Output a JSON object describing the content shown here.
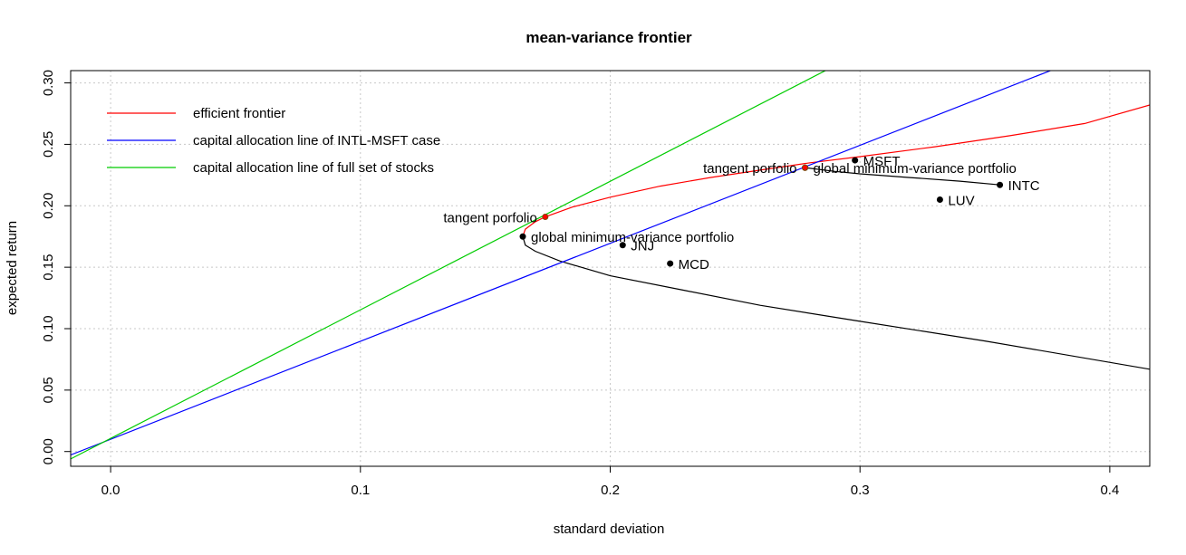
{
  "chart_data": {
    "type": "line",
    "title": "mean-variance frontier",
    "xlabel": "standard deviation",
    "ylabel": "expected return",
    "xlim": [
      -0.016,
      0.416
    ],
    "ylim": [
      -0.012,
      0.31
    ],
    "x_ticks": [
      "0.0",
      "0.1",
      "0.2",
      "0.3",
      "0.4"
    ],
    "y_ticks": [
      "0.00",
      "0.05",
      "0.10",
      "0.15",
      "0.20",
      "0.25",
      "0.30"
    ],
    "grid": true,
    "legend": {
      "position": "top-left",
      "items": [
        {
          "label": "efficient frontier",
          "color": "#ff0000"
        },
        {
          "label": "capital allocation line of INTL-MSFT case",
          "color": "#0000ff"
        },
        {
          "label": "capital allocation line of full set of stocks",
          "color": "#00cc00"
        }
      ]
    },
    "stocks": [
      {
        "label": "MSFT",
        "x": 0.298,
        "y": 0.237
      },
      {
        "label": "INTC",
        "x": 0.356,
        "y": 0.217
      },
      {
        "label": "LUV",
        "x": 0.332,
        "y": 0.205
      },
      {
        "label": "JNJ",
        "x": 0.205,
        "y": 0.168
      },
      {
        "label": "MCD",
        "x": 0.224,
        "y": 0.153
      }
    ],
    "portfolios": [
      {
        "label": "global minimum-variance portfolio",
        "x": 0.165,
        "y": 0.175,
        "case": "full set"
      },
      {
        "label": "tangent porfolio",
        "x": 0.174,
        "y": 0.191,
        "case": "full set"
      },
      {
        "label": "global minimum-variance portfolio",
        "x": 0.278,
        "y": 0.231,
        "case": "INTL-MSFT"
      },
      {
        "label": "tangent porfolio",
        "x": 0.278,
        "y": 0.231,
        "case": "INTL-MSFT"
      }
    ],
    "series": [
      {
        "role": "efficient-frontier",
        "color": "#ff0000",
        "x": [
          0.165,
          0.166,
          0.17,
          0.174,
          0.185,
          0.2,
          0.22,
          0.24,
          0.26,
          0.28,
          0.3,
          0.33,
          0.36,
          0.39,
          0.416
        ],
        "y": [
          0.175,
          0.181,
          0.187,
          0.191,
          0.199,
          0.207,
          0.216,
          0.223,
          0.229,
          0.235,
          0.24,
          0.248,
          0.257,
          0.267,
          0.282
        ]
      },
      {
        "role": "inefficient-frontier",
        "color": "#000000",
        "x": [
          0.165,
          0.166,
          0.17,
          0.18,
          0.2,
          0.23,
          0.26,
          0.3,
          0.35,
          0.416
        ],
        "y": [
          0.175,
          0.168,
          0.163,
          0.155,
          0.143,
          0.131,
          0.119,
          0.106,
          0.09,
          0.067
        ]
      },
      {
        "role": "INTL-MSFT frontier",
        "color": "#000000",
        "x": [
          0.278,
          0.29,
          0.3,
          0.32,
          0.34,
          0.356
        ],
        "y": [
          0.231,
          0.228,
          0.226,
          0.223,
          0.22,
          0.217
        ]
      },
      {
        "role": "capital allocation line of INTL-MSFT case",
        "color": "#0000ff",
        "x": [
          -0.016,
          0.38
        ],
        "y": [
          -0.0028,
          0.313
        ]
      },
      {
        "role": "capital allocation line of full set of stocks",
        "color": "#00cc00",
        "x": [
          -0.016,
          0.289
        ],
        "y": [
          -0.006,
          0.313
        ]
      }
    ]
  }
}
